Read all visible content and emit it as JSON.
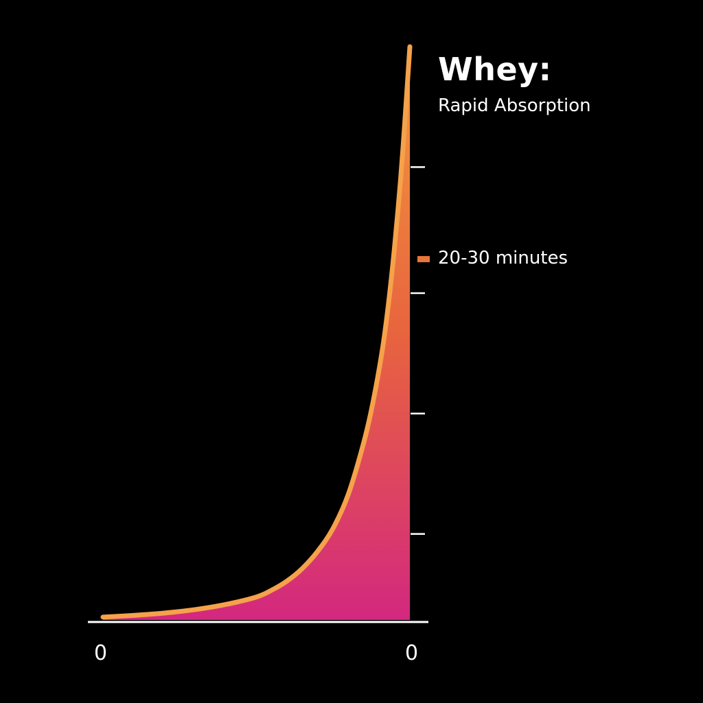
{
  "title": "Whey:",
  "subtitle": "Rapid Absorption",
  "chart_data": {
    "type": "area",
    "title": "Whey:",
    "subtitle": "Rapid Absorption",
    "x_tick_labels": [
      "0",
      "0"
    ],
    "annotation": {
      "label": "20-30 minutes",
      "color": "#e8763a",
      "y": 0.63
    },
    "x": [
      0,
      0.1,
      0.2,
      0.3,
      0.4,
      0.5,
      0.55,
      0.6,
      0.65,
      0.7,
      0.75,
      0.8,
      0.85,
      0.88,
      0.91,
      0.93,
      0.95,
      0.97,
      0.985,
      1.0
    ],
    "y": [
      0.005,
      0.008,
      0.012,
      0.018,
      0.027,
      0.04,
      0.052,
      0.068,
      0.09,
      0.12,
      0.16,
      0.22,
      0.31,
      0.38,
      0.47,
      0.55,
      0.65,
      0.77,
      0.88,
      1.0
    ],
    "y_ticks": [
      0.15,
      0.36,
      0.57,
      0.79
    ],
    "grid": false,
    "colors": {
      "line": "#f5a24a",
      "fill_top": "#f39a3c",
      "fill_mid": "#e8643e",
      "fill_bottom": "#d3287f",
      "axis": "#ffffff",
      "background": "#000000"
    }
  }
}
